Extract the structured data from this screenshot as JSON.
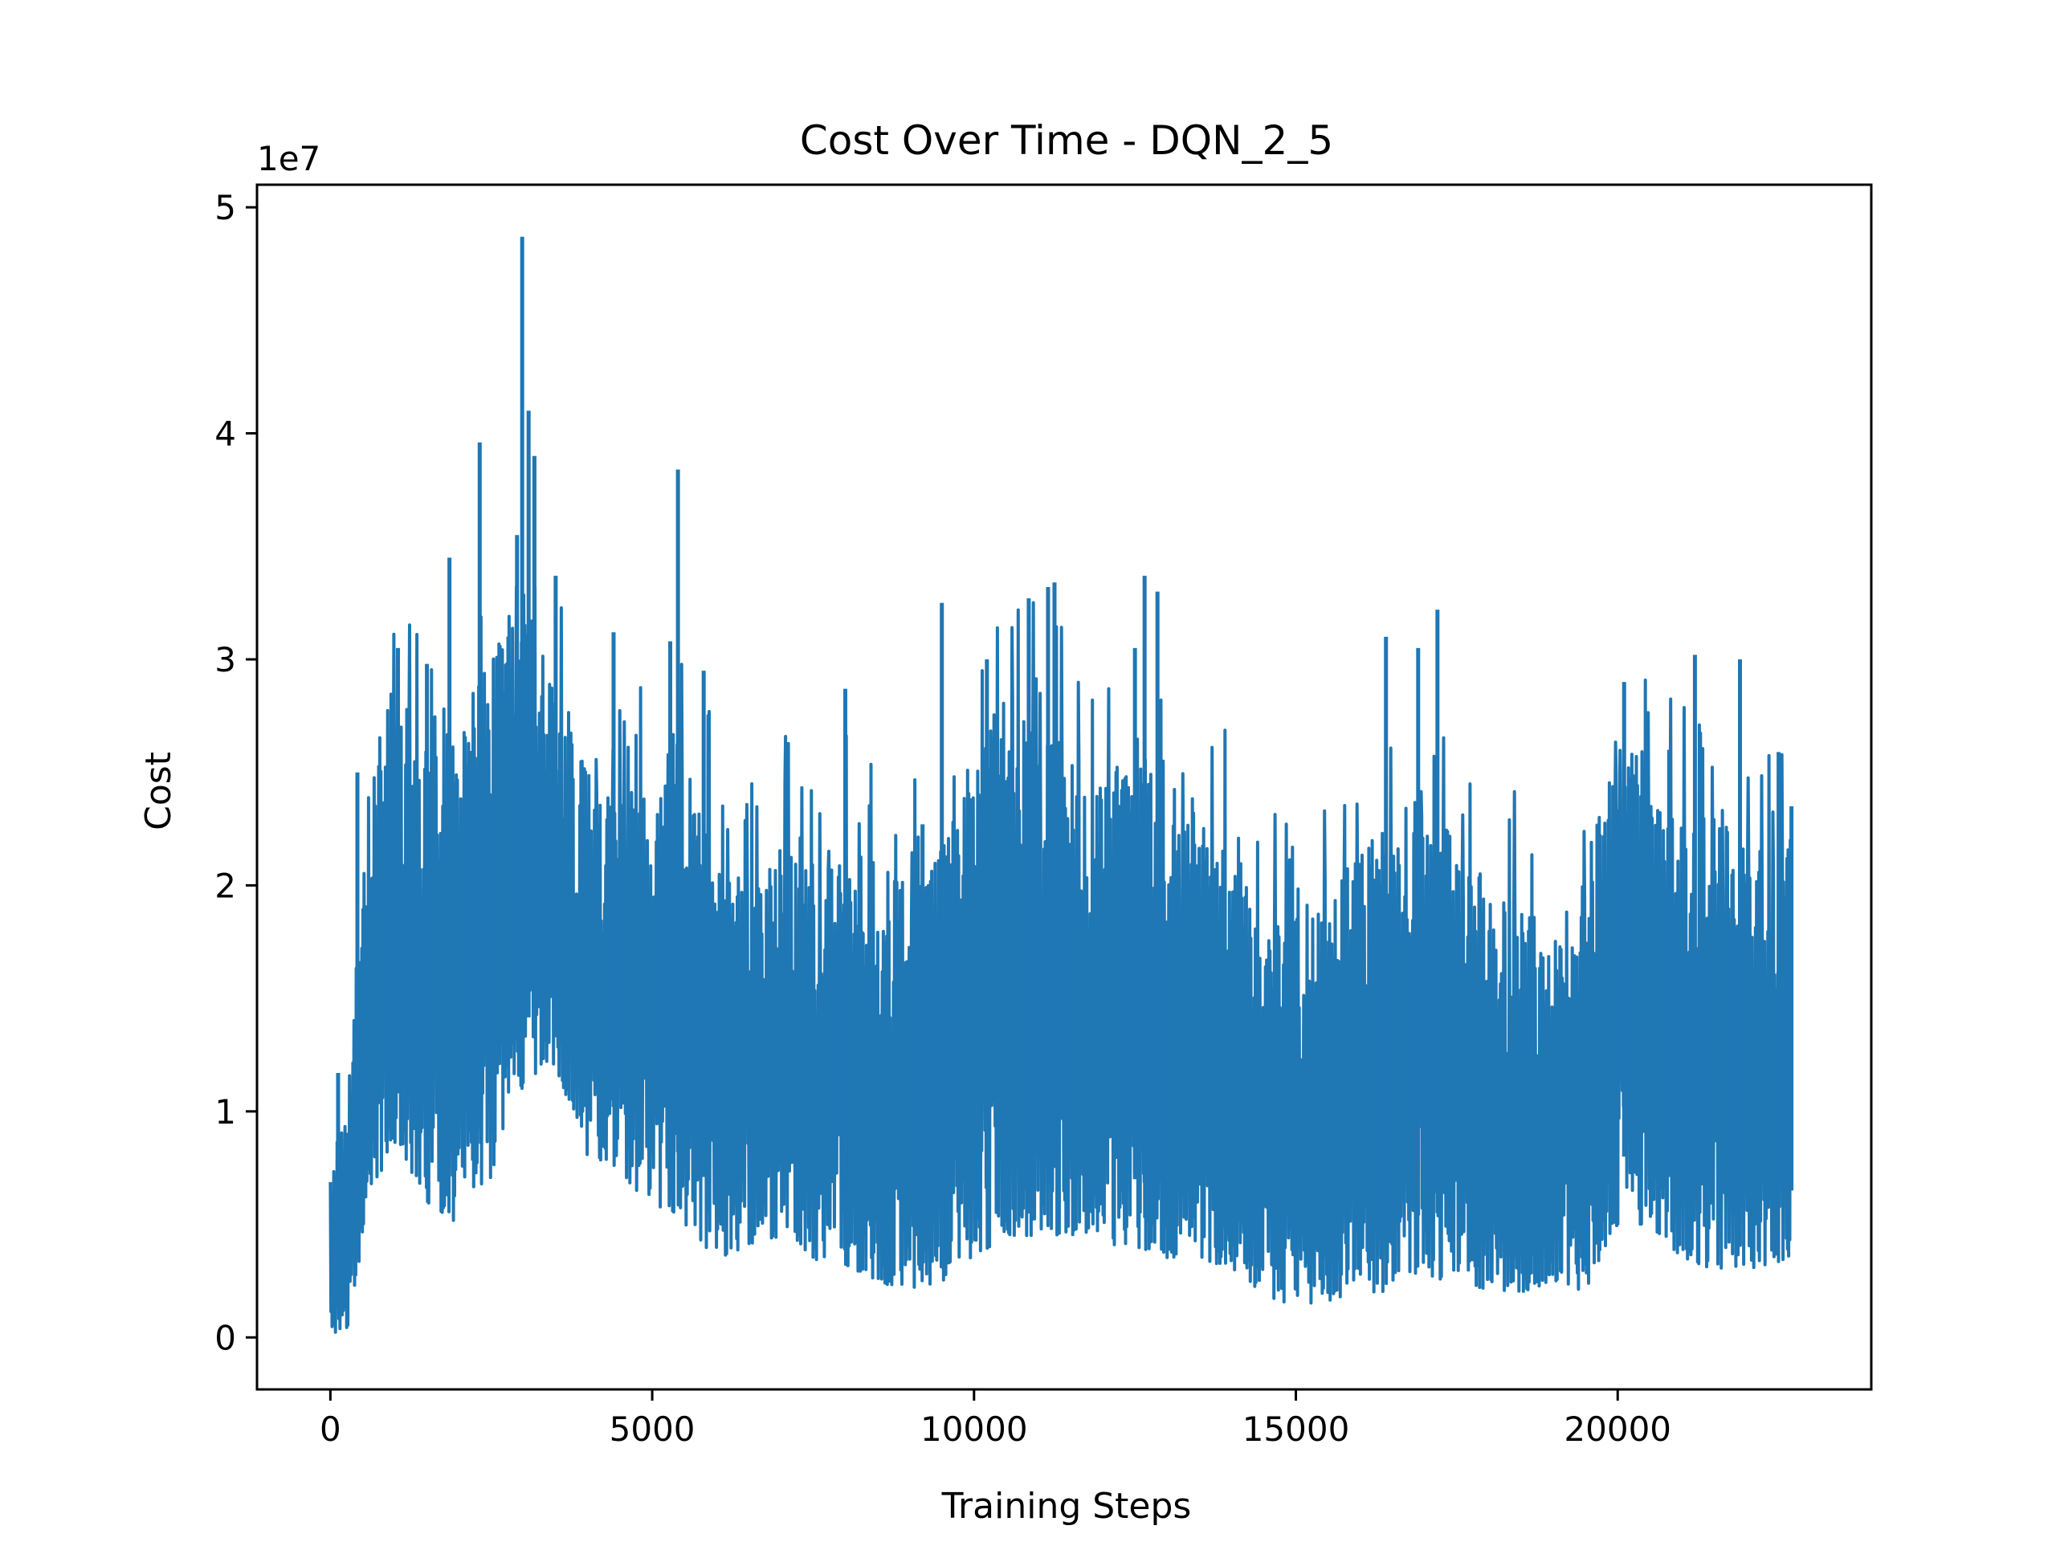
{
  "chart_data": {
    "type": "line",
    "title": "Cost Over Time - DQN_2_5",
    "xlabel": "Training Steps",
    "ylabel": "Cost",
    "y_offset_label": "1e7",
    "xlim": [
      -1140,
      23940
    ],
    "ylim": [
      -0.23,
      5.1
    ],
    "x_ticks": [
      0,
      5000,
      10000,
      15000,
      20000
    ],
    "y_ticks": [
      0,
      1,
      2,
      3,
      4,
      5
    ],
    "x_tick_labels": [
      "0",
      "5000",
      "10000",
      "15000",
      "20000"
    ],
    "y_tick_labels": [
      "0",
      "1",
      "2",
      "3",
      "4",
      "5"
    ],
    "grid": false,
    "legend": "none",
    "series_color": "#1f77b4",
    "n_points": 22800,
    "series": [
      {
        "x": [
          0,
          300,
          600,
          1000,
          1500,
          2000,
          2500,
          3000,
          3500,
          4000,
          4500,
          5000,
          5500,
          6000,
          6500,
          7000,
          7500,
          8000,
          8500,
          9000,
          9500,
          10000,
          10500,
          11000,
          11500,
          12000,
          12500,
          13000,
          13500,
          14000,
          14500,
          15000,
          15500,
          16000,
          16500,
          17000,
          17500,
          18000,
          18500,
          19000,
          19500,
          20000,
          20500,
          21000,
          21500,
          22000,
          22700
        ],
        "low": [
          0.01,
          0.05,
          0.6,
          0.8,
          0.6,
          0.5,
          0.7,
          1.1,
          1.2,
          0.8,
          0.7,
          0.6,
          0.5,
          0.35,
          0.4,
          0.45,
          0.35,
          0.3,
          0.25,
          0.2,
          0.2,
          0.35,
          0.45,
          0.45,
          0.45,
          0.4,
          0.4,
          0.35,
          0.35,
          0.3,
          0.15,
          0.15,
          0.15,
          0.2,
          0.2,
          0.25,
          0.25,
          0.2,
          0.2,
          0.25,
          0.2,
          0.5,
          0.5,
          0.35,
          0.3,
          0.3,
          0.35
        ],
        "high": [
          0.7,
          1.2,
          2.5,
          2.8,
          2.6,
          2.8,
          3.0,
          3.3,
          2.9,
          2.5,
          2.4,
          2.4,
          2.5,
          2.2,
          2.0,
          2.2,
          2.1,
          2.2,
          2.1,
          2.0,
          2.2,
          2.6,
          2.7,
          2.8,
          2.6,
          2.5,
          2.6,
          2.5,
          2.2,
          2.2,
          1.8,
          1.9,
          2.0,
          2.2,
          2.3,
          2.4,
          2.2,
          2.0,
          1.9,
          1.8,
          2.1,
          2.6,
          2.4,
          2.3,
          2.3,
          2.2,
          2.2
        ],
        "peaks": [
          [
            120,
            1.17
          ],
          [
            420,
            2.5
          ],
          [
            1050,
            3.05
          ],
          [
            1500,
            2.98
          ],
          [
            1850,
            3.45
          ],
          [
            2320,
            3.96
          ],
          [
            2900,
            3.55
          ],
          [
            2980,
            4.87
          ],
          [
            3080,
            4.1
          ],
          [
            3170,
            3.9
          ],
          [
            3500,
            3.37
          ],
          [
            4400,
            3.12
          ],
          [
            5280,
            3.08
          ],
          [
            5400,
            3.84
          ],
          [
            5800,
            2.95
          ],
          [
            8000,
            2.87
          ],
          [
            9200,
            2.27
          ],
          [
            9500,
            3.25
          ],
          [
            10200,
            3.0
          ],
          [
            10850,
            3.27
          ],
          [
            11150,
            3.32
          ],
          [
            11250,
            3.34
          ],
          [
            12500,
            3.05
          ],
          [
            12650,
            3.37
          ],
          [
            12850,
            3.3
          ],
          [
            16400,
            3.1
          ],
          [
            16900,
            3.05
          ],
          [
            17200,
            3.22
          ],
          [
            20100,
            2.9
          ],
          [
            20800,
            2.6
          ],
          [
            21200,
            3.02
          ],
          [
            21900,
            3.0
          ],
          [
            22500,
            2.59
          ],
          [
            22700,
            2.35
          ]
        ]
      }
    ]
  }
}
